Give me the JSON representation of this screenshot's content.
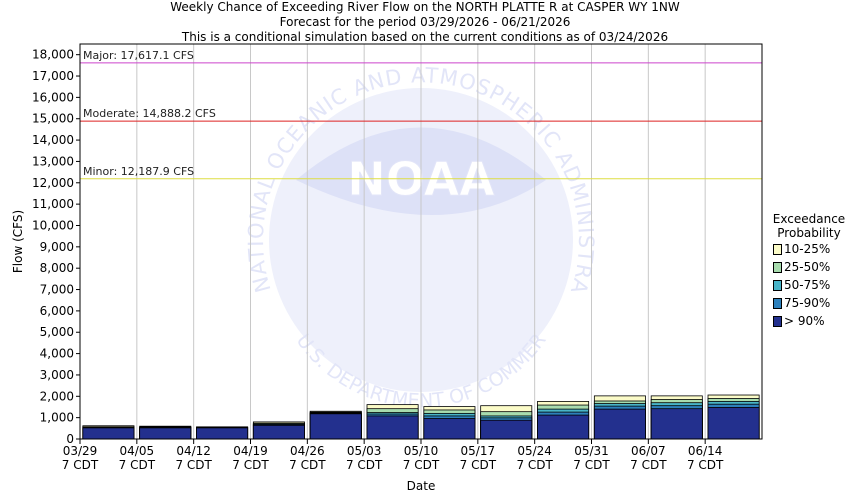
{
  "titles": {
    "line1": "Weekly Chance of Exceeding River Flow on the NORTH PLATTE R at CASPER WY 1NW",
    "line2": "Forecast for the period 03/29/2026 - 06/21/2026",
    "line3": "This is a conditional simulation based on the current conditions as of 03/24/2026"
  },
  "legend": {
    "title_line1": "Exceedance",
    "title_line2": "Probability",
    "items": [
      {
        "label": "10-25%",
        "color": "#fbfbc8"
      },
      {
        "label": "25-50%",
        "color": "#a8dcae"
      },
      {
        "label": "50-75%",
        "color": "#48b4c8"
      },
      {
        "label": "75-90%",
        "color": "#2c80bc"
      },
      {
        "label": "> 90%",
        "color": "#23308e"
      }
    ]
  },
  "watermark": {
    "logo_text": "NOAA",
    "ring_text": "NATIONAL OCEANIC AND ATMOSPHERIC ADMINISTRATION",
    "bottom_text": "U.S. DEPARTMENT OF COMMERCE"
  },
  "chart_data": {
    "type": "bar",
    "stacked": true,
    "xlabel": "Date",
    "ylabel": "Flow (CFS)",
    "ylim": [
      0,
      18500
    ],
    "yticks": [
      0,
      1000,
      2000,
      3000,
      4000,
      5000,
      6000,
      7000,
      8000,
      9000,
      10000,
      11000,
      12000,
      13000,
      14000,
      15000,
      16000,
      17000,
      18000
    ],
    "ytick_labels": [
      "0",
      "1,000",
      "2,000",
      "3,000",
      "4,000",
      "5,000",
      "6,000",
      "7,000",
      "8,000",
      "9,000",
      "10,000",
      "11,000",
      "12,000",
      "13,000",
      "14,000",
      "15,000",
      "16,000",
      "17,000",
      "18,000"
    ],
    "categories": [
      "03/29",
      "04/05",
      "04/12",
      "04/19",
      "04/26",
      "05/03",
      "05/10",
      "05/17",
      "05/24",
      "05/31",
      "06/07",
      "06/14"
    ],
    "category_sublabel": "7 CDT",
    "series": [
      {
        "name": "> 90%",
        "color": "#23308e",
        "values": [
          520,
          520,
          520,
          640,
          1180,
          1080,
          960,
          880,
          1120,
          1400,
          1420,
          1480
        ]
      },
      {
        "name": "75-90%",
        "color": "#2c80bc",
        "values": [
          540,
          540,
          530,
          680,
          1210,
          1170,
          1080,
          990,
          1260,
          1540,
          1560,
          1630
        ]
      },
      {
        "name": "50-75%",
        "color": "#48b4c8",
        "values": [
          550,
          550,
          540,
          700,
          1230,
          1240,
          1200,
          1080,
          1400,
          1660,
          1700,
          1760
        ]
      },
      {
        "name": "25-50%",
        "color": "#a8dcae",
        "values": [
          570,
          570,
          550,
          740,
          1260,
          1420,
          1360,
          1280,
          1590,
          1780,
          1850,
          1900
        ]
      },
      {
        "name": "10-25%",
        "color": "#fbfbc8",
        "values": [
          620,
          600,
          570,
          800,
          1300,
          1610,
          1520,
          1560,
          1760,
          2020,
          2020,
          2060
        ]
      }
    ],
    "thresholds": [
      {
        "label": "Major: 17,617.1 CFS",
        "value": 17617.1,
        "color": "#cc44cc"
      },
      {
        "label": "Moderate: 14,888.2 CFS",
        "value": 14888.2,
        "color": "#dd2222"
      },
      {
        "label": "Minor: 12,187.9 CFS",
        "value": 12187.9,
        "color": "#dddd44"
      }
    ]
  }
}
